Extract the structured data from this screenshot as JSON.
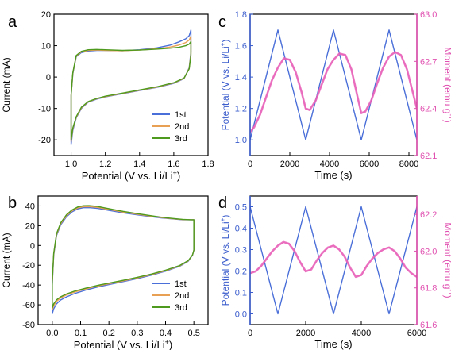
{
  "chart_data": [
    {
      "panel": "a",
      "type": "line",
      "xlabel_main": "Potential (V vs. Li/Li",
      "xlabel_sup": "+",
      "xlabel_end": ")",
      "ylabel": "Current (mA)",
      "xlim": [
        0.9,
        1.8
      ],
      "ylim": [
        -25,
        20
      ],
      "xticks": [
        1.0,
        1.2,
        1.4,
        1.6,
        1.8
      ],
      "xtick_labels": [
        "1.0",
        "1.2",
        "1.4",
        "1.6",
        "1.8"
      ],
      "yticks": [
        -20,
        -10,
        0,
        10,
        20
      ],
      "ytick_labels": [
        "-20",
        "-10",
        "0",
        "10",
        "20"
      ],
      "legend_position": "bottom-right",
      "series": [
        {
          "name": "1st",
          "color": "#4a6fd8",
          "x": [
            1.0,
            1.01,
            1.03,
            1.06,
            1.1,
            1.15,
            1.2,
            1.3,
            1.4,
            1.5,
            1.6,
            1.66,
            1.69,
            1.7,
            1.7,
            1.69,
            1.67,
            1.63,
            1.58,
            1.5,
            1.4,
            1.3,
            1.2,
            1.15,
            1.1,
            1.06,
            1.03,
            1.01,
            1.0,
            1.0
          ],
          "y": [
            -21.5,
            -17,
            -13,
            -10,
            -8,
            -7,
            -6.3,
            -5.3,
            -4.3,
            -3.3,
            -2,
            -0.5,
            3,
            8,
            15,
            13.2,
            12.2,
            11.2,
            10.2,
            9.3,
            8.7,
            8.4,
            8.5,
            8.5,
            8.3,
            7.8,
            6.5,
            1,
            -6,
            -21.5
          ]
        },
        {
          "name": "2nd",
          "color": "#e8a055",
          "x": [
            1.0,
            1.01,
            1.03,
            1.06,
            1.1,
            1.15,
            1.2,
            1.3,
            1.4,
            1.5,
            1.6,
            1.66,
            1.69,
            1.7,
            1.7,
            1.69,
            1.67,
            1.63,
            1.58,
            1.5,
            1.4,
            1.3,
            1.2,
            1.15,
            1.1,
            1.06,
            1.03,
            1.01,
            1.0,
            1.0
          ],
          "y": [
            -20.5,
            -16.5,
            -12.8,
            -9.8,
            -7.9,
            -6.9,
            -6.2,
            -5.2,
            -4.2,
            -3.2,
            -1.9,
            -0.4,
            2.8,
            7.5,
            13,
            11.8,
            11,
            10.2,
            9.6,
            9,
            8.6,
            8.4,
            8.5,
            8.6,
            8.5,
            8,
            6.7,
            1.2,
            -5.8,
            -20.5
          ]
        },
        {
          "name": "3rd",
          "color": "#4e9a1e",
          "x": [
            1.0,
            1.01,
            1.03,
            1.06,
            1.1,
            1.15,
            1.2,
            1.3,
            1.4,
            1.5,
            1.6,
            1.66,
            1.69,
            1.7,
            1.7,
            1.69,
            1.67,
            1.63,
            1.58,
            1.5,
            1.4,
            1.3,
            1.2,
            1.15,
            1.1,
            1.06,
            1.03,
            1.01,
            1.0,
            1.0
          ],
          "y": [
            -20,
            -16.2,
            -12.6,
            -9.6,
            -7.8,
            -6.8,
            -6.1,
            -5.1,
            -4.1,
            -3.1,
            -1.8,
            -0.3,
            2.6,
            7,
            11.3,
            10.5,
            10,
            9.5,
            9.2,
            8.9,
            8.6,
            8.5,
            8.7,
            8.8,
            8.7,
            8.2,
            6.9,
            1.4,
            -5.6,
            -20
          ]
        }
      ]
    },
    {
      "panel": "b",
      "type": "line",
      "xlabel_main": "Potential (V vs. Li/Li",
      "xlabel_sup": "+",
      "xlabel_end": ")",
      "ylabel": "Current (mA)",
      "xlim": [
        -0.05,
        0.55
      ],
      "ylim": [
        -80,
        50
      ],
      "xticks": [
        0.0,
        0.1,
        0.2,
        0.3,
        0.4,
        0.5
      ],
      "xtick_labels": [
        "0.0",
        "0.1",
        "0.2",
        "0.3",
        "0.4",
        "0.5"
      ],
      "yticks": [
        -80,
        -60,
        -40,
        -20,
        0,
        20,
        40
      ],
      "ytick_labels": [
        "-80",
        "-60",
        "-40",
        "-20",
        "0",
        "20",
        "40"
      ],
      "legend_position": "bottom-right",
      "series": [
        {
          "name": "1st",
          "color": "#4a6fd8",
          "x": [
            0.0,
            0.005,
            0.015,
            0.03,
            0.05,
            0.08,
            0.12,
            0.16,
            0.2,
            0.25,
            0.3,
            0.35,
            0.4,
            0.45,
            0.48,
            0.495,
            0.5,
            0.5,
            0.49,
            0.46,
            0.42,
            0.38,
            0.34,
            0.3,
            0.25,
            0.2,
            0.16,
            0.13,
            0.11,
            0.09,
            0.07,
            0.05,
            0.03,
            0.015,
            0.005,
            0.0,
            0.0
          ],
          "y": [
            -69,
            -64,
            -59,
            -55,
            -52,
            -48.5,
            -45,
            -42,
            -39.5,
            -36.5,
            -33.5,
            -30,
            -26,
            -21,
            -16,
            -10,
            -5,
            26,
            26,
            26,
            27,
            28,
            29.5,
            31,
            33,
            35.5,
            37.5,
            38.3,
            38.2,
            37,
            34,
            29,
            21,
            10,
            -10,
            -40,
            -69
          ]
        },
        {
          "name": "2nd",
          "color": "#e8a055",
          "x": [
            0.0,
            0.005,
            0.015,
            0.03,
            0.05,
            0.08,
            0.12,
            0.16,
            0.2,
            0.25,
            0.3,
            0.35,
            0.4,
            0.45,
            0.48,
            0.495,
            0.5,
            0.5,
            0.49,
            0.46,
            0.42,
            0.38,
            0.34,
            0.3,
            0.25,
            0.2,
            0.16,
            0.13,
            0.11,
            0.09,
            0.07,
            0.05,
            0.03,
            0.015,
            0.005,
            0.0,
            0.0
          ],
          "y": [
            -65,
            -61,
            -56.5,
            -53,
            -50,
            -47,
            -43.8,
            -41,
            -38.7,
            -35.8,
            -32.8,
            -29.4,
            -25.5,
            -20.6,
            -15.6,
            -9.8,
            -4.8,
            26,
            26,
            26.2,
            27.2,
            28.4,
            30,
            31.6,
            33.8,
            36.4,
            38.5,
            39.3,
            39.2,
            38,
            35,
            30,
            22,
            11,
            -9,
            -38,
            -65
          ]
        },
        {
          "name": "3rd",
          "color": "#4e9a1e",
          "x": [
            0.0,
            0.005,
            0.015,
            0.03,
            0.05,
            0.08,
            0.12,
            0.16,
            0.2,
            0.25,
            0.3,
            0.35,
            0.4,
            0.45,
            0.48,
            0.495,
            0.5,
            0.5,
            0.49,
            0.46,
            0.42,
            0.38,
            0.34,
            0.3,
            0.25,
            0.2,
            0.16,
            0.13,
            0.11,
            0.09,
            0.07,
            0.05,
            0.03,
            0.015,
            0.005,
            0.0,
            0.0
          ],
          "y": [
            -63,
            -59,
            -55,
            -51.8,
            -49,
            -46,
            -43,
            -40.3,
            -38,
            -35.2,
            -32.2,
            -28.9,
            -25,
            -20.2,
            -15.3,
            -9.6,
            -4.6,
            26,
            26,
            26.4,
            27.5,
            28.8,
            30.5,
            32.2,
            34.5,
            37.2,
            39.5,
            40.3,
            40.2,
            39,
            36,
            31,
            23,
            12,
            -8,
            -36,
            -63
          ]
        }
      ]
    },
    {
      "panel": "c",
      "type": "line",
      "xlabel": "Time (s)",
      "ylabel_left_main": "Potential (V vs. Li/Li",
      "ylabel_left_sup": "+",
      "ylabel_left_end": ")",
      "ylabel_right_main": "Moment (emu g",
      "ylabel_right_sup": "-1",
      "ylabel_right_end": ")",
      "xlim": [
        0,
        8400
      ],
      "xticks": [
        0,
        2000,
        4000,
        6000,
        8000
      ],
      "xtick_labels": [
        "0",
        "2000",
        "4000",
        "6000",
        "8000"
      ],
      "ylim_left": [
        0.9,
        1.8
      ],
      "yticks_left": [
        1.0,
        1.2,
        1.4,
        1.6,
        1.8
      ],
      "ytick_labels_left": [
        "1.0",
        "1.2",
        "1.4",
        "1.6",
        "1.8"
      ],
      "ylim_right": [
        62.1,
        63.0
      ],
      "yticks_right": [
        62.1,
        62.4,
        62.7,
        63.0
      ],
      "ytick_labels_right": [
        "62.1",
        "62.4",
        "62.7",
        "63.0"
      ],
      "series": [
        {
          "name": "Potential",
          "axis": "left",
          "color": "#4a6fd8",
          "x": [
            0,
            1400,
            2800,
            4200,
            5600,
            7000,
            8400
          ],
          "y": [
            1.0,
            1.7,
            1.0,
            1.7,
            1.0,
            1.7,
            1.0
          ]
        },
        {
          "name": "Moment",
          "axis": "right",
          "color": "#e860b8",
          "x": [
            0,
            200,
            500,
            800,
            1100,
            1400,
            1700,
            2000,
            2300,
            2600,
            2800,
            3000,
            3300,
            3600,
            3900,
            4200,
            4500,
            4800,
            5100,
            5400,
            5600,
            5800,
            6100,
            6400,
            6700,
            7000,
            7300,
            7600,
            7900,
            8200,
            8400
          ],
          "y": [
            62.25,
            62.28,
            62.36,
            62.47,
            62.58,
            62.66,
            62.72,
            62.71,
            62.63,
            62.5,
            62.4,
            62.39,
            62.45,
            62.55,
            62.65,
            62.71,
            62.75,
            62.74,
            62.65,
            62.48,
            62.37,
            62.38,
            62.45,
            62.56,
            62.66,
            62.73,
            62.76,
            62.74,
            62.65,
            62.5,
            62.4
          ]
        }
      ]
    },
    {
      "panel": "d",
      "type": "line",
      "xlabel": "Time (s)",
      "ylabel_left_main": "Potential (V vs. Li/Li",
      "ylabel_left_sup": "+",
      "ylabel_left_end": ")",
      "ylabel_right_main": "Moment (emu g",
      "ylabel_right_sup": "-1",
      "ylabel_right_end": ")",
      "xlim": [
        0,
        6000
      ],
      "xticks": [
        0,
        2000,
        4000,
        6000
      ],
      "xtick_labels": [
        "0",
        "2000",
        "4000",
        "6000"
      ],
      "ylim_left": [
        -0.05,
        0.55
      ],
      "yticks_left": [
        0.0,
        0.1,
        0.2,
        0.3,
        0.4,
        0.5
      ],
      "ytick_labels_left": [
        "0.0",
        "0.1",
        "0.2",
        "0.3",
        "0.4",
        "0.5"
      ],
      "ylim_right": [
        61.6,
        62.3
      ],
      "yticks_right": [
        61.6,
        61.8,
        62.0,
        62.2
      ],
      "ytick_labels_right": [
        "61.6",
        "61.8",
        "62.0",
        "62.2"
      ],
      "series": [
        {
          "name": "Potential",
          "axis": "left",
          "color": "#4a6fd8",
          "x": [
            0,
            1000,
            2000,
            3000,
            4000,
            5000,
            6000
          ],
          "y": [
            0.5,
            0.0,
            0.5,
            0.0,
            0.5,
            0.0,
            0.5
          ]
        },
        {
          "name": "Moment",
          "axis": "right",
          "color": "#e860b8",
          "x": [
            0,
            200,
            400,
            600,
            800,
            1000,
            1200,
            1400,
            1600,
            1800,
            2000,
            2200,
            2400,
            2600,
            2800,
            3000,
            3200,
            3400,
            3600,
            3800,
            4000,
            4200,
            4400,
            4600,
            4800,
            5000,
            5200,
            5400,
            5600,
            5800,
            6000
          ],
          "y": [
            61.88,
            61.89,
            61.92,
            61.96,
            62.0,
            62.03,
            62.05,
            62.04,
            62.0,
            61.94,
            61.89,
            61.9,
            61.95,
            61.99,
            62.02,
            62.03,
            62.01,
            61.97,
            61.91,
            61.86,
            61.87,
            61.92,
            61.96,
            61.99,
            62.01,
            62.02,
            62.0,
            61.96,
            61.91,
            61.88,
            61.86
          ]
        }
      ]
    }
  ]
}
